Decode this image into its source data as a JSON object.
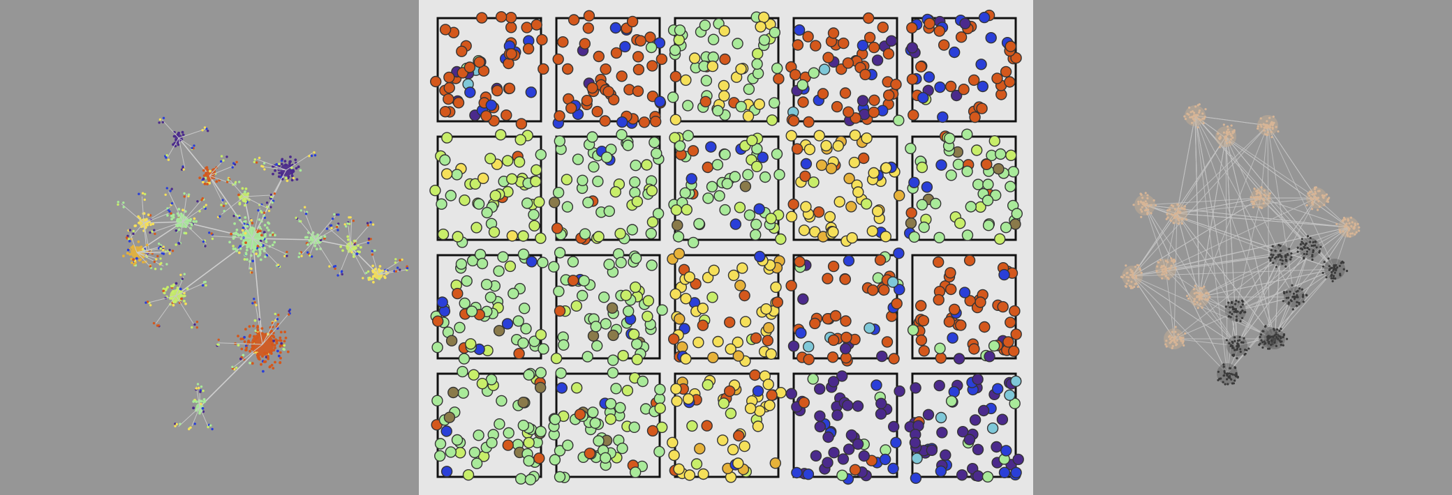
{
  "figure": {
    "panels": [
      {
        "name": "left-network-panel",
        "kind": "network",
        "caption": ""
      },
      {
        "name": "center-grid-panel",
        "kind": "scatter-grid",
        "caption": ""
      },
      {
        "name": "right-network-panel",
        "kind": "network",
        "caption": ""
      }
    ]
  },
  "palette": {
    "background": "#969696",
    "grid_background": "#e6e6e6",
    "frame": "#000000",
    "edge": "#cfcfcf",
    "colors": [
      "#d4581c",
      "#2a3fd8",
      "#4b2a8c",
      "#a9ea9a",
      "#c8ee6a",
      "#f5e05a",
      "#e6b23a",
      "#8a7a4a",
      "#7fc8d8"
    ],
    "cluster_tones": [
      "#d7b596",
      "#3a3a3a"
    ]
  },
  "grid": {
    "rows": 4,
    "cols": 5,
    "cells": [
      {
        "name": "grid-cell-r1-c1",
        "dominant": "orange"
      },
      {
        "name": "grid-cell-r1-c2",
        "dominant": "orange"
      },
      {
        "name": "grid-cell-r1-c3",
        "dominant": "yellow-green"
      },
      {
        "name": "grid-cell-r1-c4",
        "dominant": "orange"
      },
      {
        "name": "grid-cell-r1-c5",
        "dominant": "orange-blue"
      },
      {
        "name": "grid-cell-r2-c1",
        "dominant": "lime"
      },
      {
        "name": "grid-cell-r2-c2",
        "dominant": "light-green"
      },
      {
        "name": "grid-cell-r2-c3",
        "dominant": "light-green"
      },
      {
        "name": "grid-cell-r2-c4",
        "dominant": "yellow"
      },
      {
        "name": "grid-cell-r2-c5",
        "dominant": "light-green"
      },
      {
        "name": "grid-cell-r3-c1",
        "dominant": "light-green"
      },
      {
        "name": "grid-cell-r3-c2",
        "dominant": "light-green"
      },
      {
        "name": "grid-cell-r3-c3",
        "dominant": "yellow"
      },
      {
        "name": "grid-cell-r3-c4",
        "dominant": "orange"
      },
      {
        "name": "grid-cell-r3-c5",
        "dominant": "orange"
      },
      {
        "name": "grid-cell-r4-c1",
        "dominant": "light-green"
      },
      {
        "name": "grid-cell-r4-c2",
        "dominant": "light-green"
      },
      {
        "name": "grid-cell-r4-c3",
        "dominant": "yellow"
      },
      {
        "name": "grid-cell-r4-c4",
        "dominant": "purple"
      },
      {
        "name": "grid-cell-r4-c5",
        "dominant": "purple"
      }
    ]
  }
}
